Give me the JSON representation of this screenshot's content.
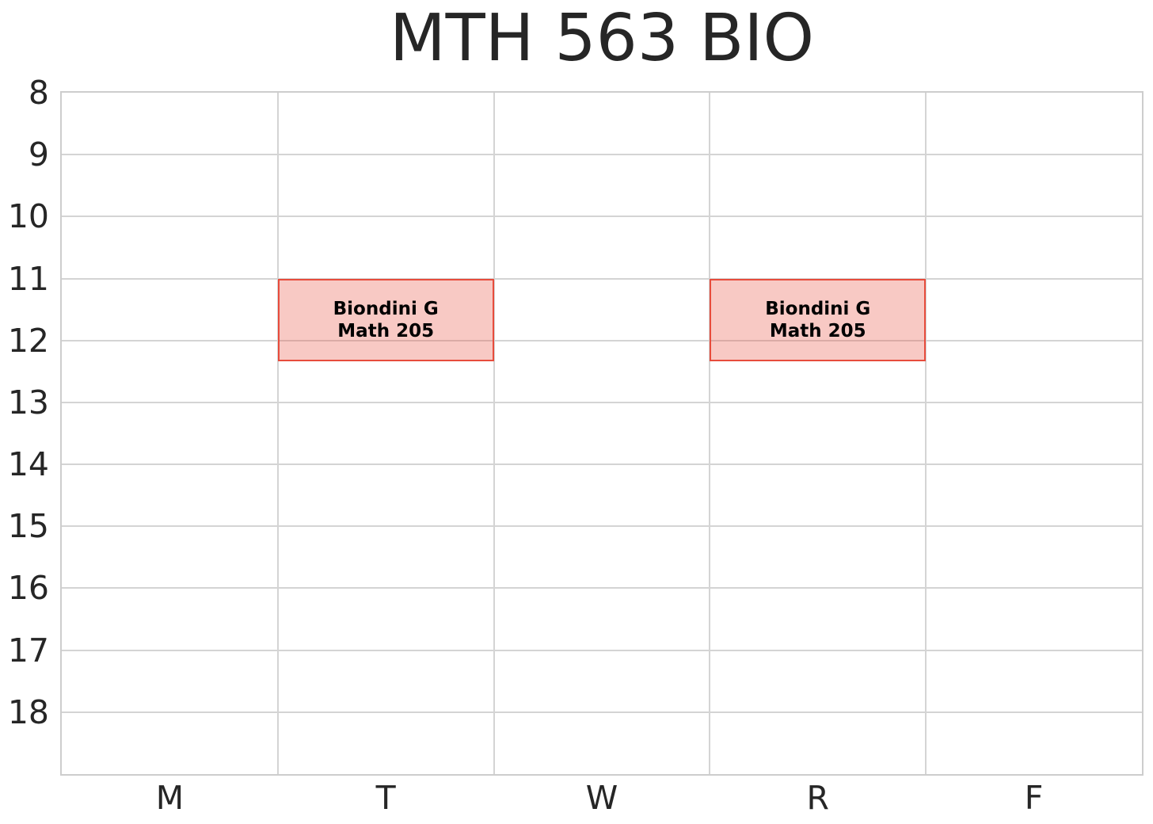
{
  "title": "MTH 563 BIO",
  "colors": {
    "background": "#ffffff",
    "grid": "#d4d4d4",
    "spine": "#cdcdcd",
    "tick_text": "#262626",
    "title_text": "#262626",
    "event_fill": "rgba(231,76,60,0.3)",
    "event_border": "#e74c3c",
    "event_text": "#000000"
  },
  "y_axis": {
    "tick_labels": [
      "8",
      "9",
      "10",
      "11",
      "12",
      "13",
      "14",
      "15",
      "16",
      "17",
      "18"
    ],
    "start_hour": 8,
    "end_hour": 19
  },
  "x_axis": {
    "tick_labels": [
      "M",
      "T",
      "W",
      "R",
      "F"
    ]
  },
  "events": [
    {
      "day": "T",
      "day_index": 1,
      "start_hour": 11.0,
      "end_hour": 12.3333,
      "start_time": "11:00",
      "end_time": "12:20",
      "instructor": "Biondini G",
      "room": "Math 205"
    },
    {
      "day": "R",
      "day_index": 3,
      "start_hour": 11.0,
      "end_hour": 12.3333,
      "start_time": "11:00",
      "end_time": "12:20",
      "instructor": "Biondini G",
      "room": "Math 205"
    }
  ],
  "chart_data": {
    "type": "table",
    "subtype": "weekly-schedule-grid",
    "title": "MTH 563 BIO",
    "x_categories": [
      "M",
      "T",
      "W",
      "R",
      "F"
    ],
    "y_ticks": [
      8,
      9,
      10,
      11,
      12,
      13,
      14,
      15,
      16,
      17,
      18
    ],
    "y_range": [
      8,
      19
    ],
    "y_inverted": true,
    "y_unit": "hour of day",
    "grid": true,
    "legend": false,
    "events": [
      {
        "day": "T",
        "start": "11:00",
        "end": "12:20",
        "start_hour": 11.0,
        "end_hour": 12.3333,
        "label_lines": [
          "Biondini G",
          "Math 205"
        ]
      },
      {
        "day": "R",
        "start": "11:00",
        "end": "12:20",
        "start_hour": 11.0,
        "end_hour": 12.3333,
        "label_lines": [
          "Biondini G",
          "Math 205"
        ]
      }
    ]
  }
}
